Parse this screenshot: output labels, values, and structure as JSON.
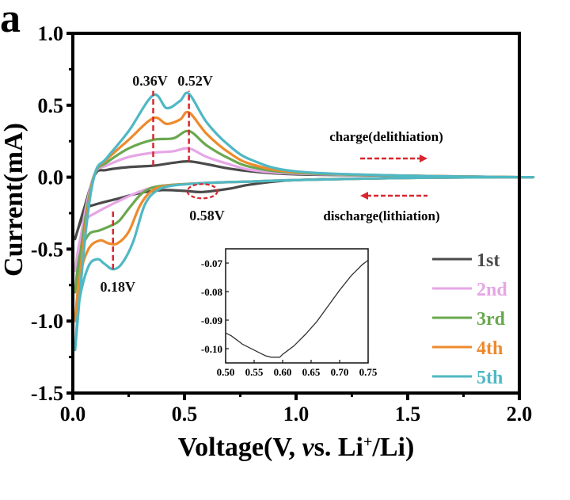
{
  "chart_data": {
    "type": "line",
    "panel_label": "a",
    "title": "",
    "xlabel": "Voltage(V, vs. Li+/Li)",
    "xlabel_parts": {
      "pre": "Voltage(V, ",
      "italic": "v",
      "mid": "s. Li",
      "sup": "+",
      "post": "/Li)"
    },
    "ylabel": "Current(mA)",
    "xlim": [
      0.0,
      2.0
    ],
    "ylim": [
      -1.5,
      1.0
    ],
    "xticks": [
      0.0,
      0.5,
      1.0,
      1.5,
      2.0
    ],
    "xtick_labels": [
      "0.0",
      "0.5",
      "1.0",
      "1.5",
      "2.0"
    ],
    "yticks": [
      1.0,
      0.5,
      0.0,
      -0.5,
      -1.0,
      -1.5
    ],
    "ytick_labels": [
      "1.0",
      "0.5",
      "0.0",
      "-0.5",
      "-1.0",
      "-1.5"
    ],
    "grid": false,
    "legend_position": "bottom-right",
    "series": [
      {
        "name": "1st",
        "color": "#4a4a4a",
        "anodic": [
          [
            0.01,
            -0.43
          ],
          [
            0.05,
            -0.22
          ],
          [
            0.1,
            0.02
          ],
          [
            0.15,
            0.05
          ],
          [
            0.25,
            0.07
          ],
          [
            0.36,
            0.08
          ],
          [
            0.45,
            0.1
          ],
          [
            0.52,
            0.11
          ],
          [
            0.6,
            0.09
          ],
          [
            0.7,
            0.06
          ],
          [
            0.8,
            0.04
          ],
          [
            1.0,
            0.02
          ],
          [
            1.5,
            0.01
          ],
          [
            2.0,
            0.0
          ]
        ],
        "cathodic": [
          [
            2.0,
            0.0
          ],
          [
            1.5,
            -0.005
          ],
          [
            1.0,
            -0.02
          ],
          [
            0.8,
            -0.05
          ],
          [
            0.7,
            -0.08
          ],
          [
            0.58,
            -0.103
          ],
          [
            0.5,
            -0.095
          ],
          [
            0.4,
            -0.09
          ],
          [
            0.3,
            -0.11
          ],
          [
            0.2,
            -0.15
          ],
          [
            0.1,
            -0.19
          ],
          [
            0.06,
            -0.22
          ],
          [
            0.03,
            -0.33
          ],
          [
            0.01,
            -0.43
          ]
        ]
      },
      {
        "name": "2nd",
        "color": "#e6a6e6",
        "anodic": [
          [
            0.01,
            -0.65
          ],
          [
            0.06,
            -0.2
          ],
          [
            0.1,
            0.03
          ],
          [
            0.15,
            0.08
          ],
          [
            0.25,
            0.14
          ],
          [
            0.36,
            0.17
          ],
          [
            0.45,
            0.18
          ],
          [
            0.52,
            0.2
          ],
          [
            0.6,
            0.14
          ],
          [
            0.7,
            0.09
          ],
          [
            0.8,
            0.05
          ],
          [
            1.0,
            0.025
          ],
          [
            1.5,
            0.01
          ],
          [
            2.0,
            0.0
          ]
        ],
        "cathodic": [
          [
            2.0,
            0.0
          ],
          [
            1.5,
            -0.005
          ],
          [
            1.0,
            -0.02
          ],
          [
            0.8,
            -0.03
          ],
          [
            0.6,
            -0.04
          ],
          [
            0.4,
            -0.06
          ],
          [
            0.3,
            -0.1
          ],
          [
            0.2,
            -0.17
          ],
          [
            0.1,
            -0.25
          ],
          [
            0.06,
            -0.3
          ],
          [
            0.03,
            -0.45
          ],
          [
            0.01,
            -0.65
          ]
        ]
      },
      {
        "name": "3rd",
        "color": "#6aa84f",
        "anodic": [
          [
            0.01,
            -0.8
          ],
          [
            0.06,
            -0.25
          ],
          [
            0.1,
            0.03
          ],
          [
            0.15,
            0.1
          ],
          [
            0.25,
            0.2
          ],
          [
            0.36,
            0.26
          ],
          [
            0.45,
            0.27
          ],
          [
            0.52,
            0.32
          ],
          [
            0.6,
            0.22
          ],
          [
            0.7,
            0.13
          ],
          [
            0.8,
            0.07
          ],
          [
            1.0,
            0.03
          ],
          [
            1.5,
            0.01
          ],
          [
            2.0,
            0.0
          ]
        ],
        "cathodic": [
          [
            2.0,
            0.0
          ],
          [
            1.5,
            -0.005
          ],
          [
            1.0,
            -0.02
          ],
          [
            0.8,
            -0.03
          ],
          [
            0.6,
            -0.04
          ],
          [
            0.4,
            -0.06
          ],
          [
            0.32,
            -0.1
          ],
          [
            0.26,
            -0.2
          ],
          [
            0.21,
            -0.3
          ],
          [
            0.18,
            -0.33
          ],
          [
            0.12,
            -0.37
          ],
          [
            0.07,
            -0.4
          ],
          [
            0.03,
            -0.55
          ],
          [
            0.01,
            -0.8
          ]
        ]
      },
      {
        "name": "4th",
        "color": "#ee8a2c",
        "anodic": [
          [
            0.01,
            -1.0
          ],
          [
            0.06,
            -0.3
          ],
          [
            0.1,
            0.03
          ],
          [
            0.15,
            0.12
          ],
          [
            0.25,
            0.26
          ],
          [
            0.36,
            0.41
          ],
          [
            0.42,
            0.37
          ],
          [
            0.48,
            0.4
          ],
          [
            0.52,
            0.45
          ],
          [
            0.6,
            0.3
          ],
          [
            0.7,
            0.17
          ],
          [
            0.8,
            0.09
          ],
          [
            1.0,
            0.035
          ],
          [
            1.5,
            0.01
          ],
          [
            2.0,
            0.0
          ]
        ],
        "cathodic": [
          [
            2.0,
            0.0
          ],
          [
            1.5,
            -0.005
          ],
          [
            1.0,
            -0.02
          ],
          [
            0.8,
            -0.03
          ],
          [
            0.6,
            -0.04
          ],
          [
            0.42,
            -0.06
          ],
          [
            0.35,
            -0.1
          ],
          [
            0.3,
            -0.2
          ],
          [
            0.25,
            -0.38
          ],
          [
            0.2,
            -0.46
          ],
          [
            0.16,
            -0.46
          ],
          [
            0.12,
            -0.44
          ],
          [
            0.07,
            -0.5
          ],
          [
            0.03,
            -0.7
          ],
          [
            0.01,
            -1.0
          ]
        ]
      },
      {
        "name": "5th",
        "color": "#4fb8c4",
        "anodic": [
          [
            0.01,
            -1.2
          ],
          [
            0.06,
            -0.35
          ],
          [
            0.1,
            0.03
          ],
          [
            0.15,
            0.13
          ],
          [
            0.25,
            0.32
          ],
          [
            0.36,
            0.57
          ],
          [
            0.42,
            0.48
          ],
          [
            0.48,
            0.53
          ],
          [
            0.52,
            0.58
          ],
          [
            0.6,
            0.38
          ],
          [
            0.7,
            0.22
          ],
          [
            0.8,
            0.12
          ],
          [
            1.0,
            0.04
          ],
          [
            1.5,
            0.01
          ],
          [
            2.0,
            0.0
          ]
        ],
        "cathodic": [
          [
            2.0,
            0.0
          ],
          [
            1.5,
            -0.005
          ],
          [
            1.0,
            -0.02
          ],
          [
            0.8,
            -0.03
          ],
          [
            0.6,
            -0.04
          ],
          [
            0.44,
            -0.06
          ],
          [
            0.37,
            -0.1
          ],
          [
            0.32,
            -0.2
          ],
          [
            0.27,
            -0.45
          ],
          [
            0.22,
            -0.6
          ],
          [
            0.18,
            -0.64
          ],
          [
            0.14,
            -0.6
          ],
          [
            0.11,
            -0.57
          ],
          [
            0.07,
            -0.62
          ],
          [
            0.03,
            -0.85
          ],
          [
            0.01,
            -1.2
          ]
        ]
      }
    ],
    "annotations": [
      {
        "text": "0.36V",
        "x": 0.36,
        "line_from": 0.08,
        "line_to": 0.6
      },
      {
        "text": "0.52V",
        "x": 0.52,
        "line_from": 0.11,
        "line_to": 0.6
      },
      {
        "text": "0.18V",
        "x": 0.18,
        "line_from": -0.64,
        "line_to": -0.22
      },
      {
        "text": "0.58V",
        "x": 0.58,
        "y": -0.103
      }
    ],
    "arrows": [
      {
        "text": "charge(delithiation)",
        "direction": "right"
      },
      {
        "text": "discharge(lithiation)",
        "direction": "left"
      }
    ],
    "annotation_color": "#d9262e",
    "inset": {
      "type": "line",
      "series": "1st",
      "xlim": [
        0.5,
        0.75
      ],
      "ylim": [
        -0.105,
        -0.065
      ],
      "xticks": [
        0.5,
        0.55,
        0.6,
        0.65,
        0.7,
        0.75
      ],
      "xtick_labels": [
        "0.50",
        "0.55",
        "0.60",
        "0.65",
        "0.70",
        "0.75"
      ],
      "yticks": [
        -0.07,
        -0.08,
        -0.09,
        -0.1
      ],
      "ytick_labels": [
        "-0.07",
        "-0.08",
        "-0.09",
        "-0.10"
      ],
      "points": [
        [
          0.5,
          -0.0945
        ],
        [
          0.51,
          -0.0955
        ],
        [
          0.52,
          -0.097
        ],
        [
          0.53,
          -0.0985
        ],
        [
          0.54,
          -0.0995
        ],
        [
          0.55,
          -0.1005
        ],
        [
          0.56,
          -0.1015
        ],
        [
          0.57,
          -0.1025
        ],
        [
          0.58,
          -0.103
        ],
        [
          0.595,
          -0.103
        ],
        [
          0.6,
          -0.102
        ],
        [
          0.61,
          -0.1005
        ],
        [
          0.62,
          -0.099
        ],
        [
          0.64,
          -0.095
        ],
        [
          0.66,
          -0.0905
        ],
        [
          0.68,
          -0.085
        ],
        [
          0.7,
          -0.0795
        ],
        [
          0.72,
          -0.0745
        ],
        [
          0.74,
          -0.0705
        ],
        [
          0.75,
          -0.069
        ]
      ]
    }
  }
}
